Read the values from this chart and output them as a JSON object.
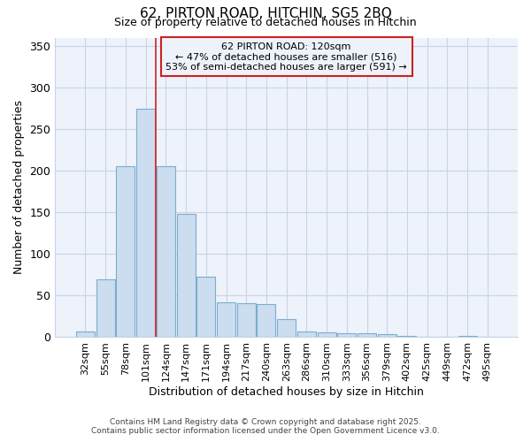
{
  "title1": "62, PIRTON ROAD, HITCHIN, SG5 2BQ",
  "title2": "Size of property relative to detached houses in Hitchin",
  "xlabel": "Distribution of detached houses by size in Hitchin",
  "ylabel": "Number of detached properties",
  "categories": [
    "32sqm",
    "55sqm",
    "78sqm",
    "101sqm",
    "124sqm",
    "147sqm",
    "171sqm",
    "194sqm",
    "217sqm",
    "240sqm",
    "263sqm",
    "286sqm",
    "310sqm",
    "333sqm",
    "356sqm",
    "379sqm",
    "402sqm",
    "425sqm",
    "449sqm",
    "472sqm",
    "495sqm"
  ],
  "values": [
    7,
    70,
    205,
    275,
    205,
    148,
    73,
    42,
    41,
    40,
    22,
    7,
    6,
    5,
    5,
    4,
    2,
    1,
    0,
    2,
    0
  ],
  "bar_color": "#ccddf0",
  "bar_edge_color": "#7aadcc",
  "vline_x": 3.5,
  "vline_color": "#cc2222",
  "annotation_title": "62 PIRTON ROAD: 120sqm",
  "annotation_line1": "← 47% of detached houses are smaller (516)",
  "annotation_line2": "53% of semi-detached houses are larger (591) →",
  "annotation_box_color": "#cc2222",
  "ylim": [
    0,
    360
  ],
  "yticks": [
    0,
    50,
    100,
    150,
    200,
    250,
    300,
    350
  ],
  "footer1": "Contains HM Land Registry data © Crown copyright and database right 2025.",
  "footer2": "Contains public sector information licensed under the Open Government Licence v3.0.",
  "bg_color": "#ffffff",
  "plot_bg_color": "#eef2fb",
  "grid_color": "#c8d4e8"
}
